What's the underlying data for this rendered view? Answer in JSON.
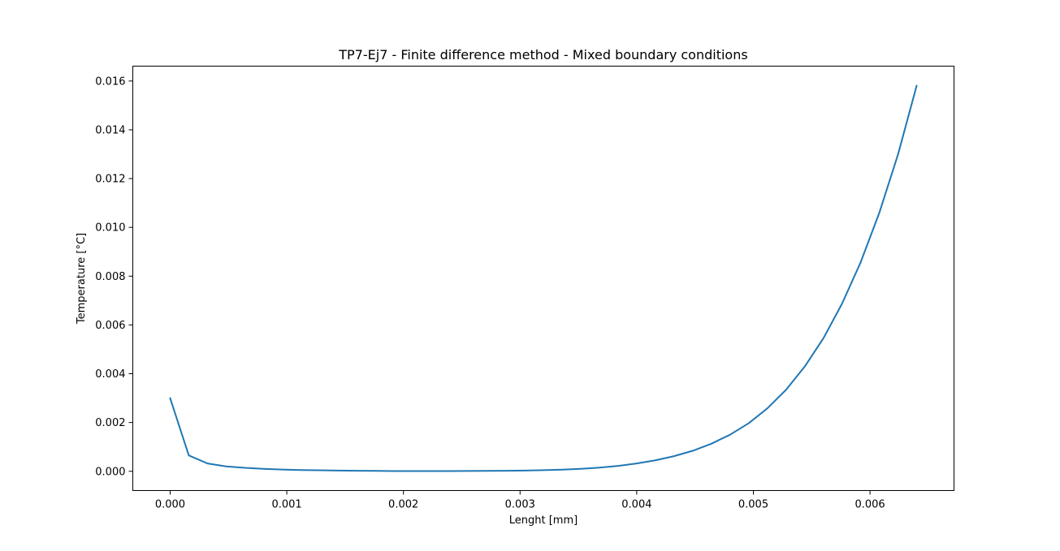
{
  "chart_data": {
    "type": "line",
    "title": "TP7-Ej7 - Finite difference method - Mixed boundary conditions",
    "xlabel": "Lenght [mm]",
    "ylabel": "Temperature [°C]",
    "xlim": [
      -0.00032,
      0.00672
    ],
    "ylim": [
      -0.00079,
      0.01661
    ],
    "xticks": [
      0.0,
      0.001,
      0.002,
      0.003,
      0.004,
      0.005,
      0.006
    ],
    "xtick_labels": [
      "0.000",
      "0.001",
      "0.002",
      "0.003",
      "0.004",
      "0.005",
      "0.006"
    ],
    "yticks": [
      0.0,
      0.002,
      0.004,
      0.006,
      0.008,
      0.01,
      0.012,
      0.014,
      0.016
    ],
    "ytick_labels": [
      "0.000",
      "0.002",
      "0.004",
      "0.006",
      "0.008",
      "0.010",
      "0.012",
      "0.014",
      "0.016"
    ],
    "grid": false,
    "series": [
      {
        "color": "#1f77b4",
        "x": [
          0.0,
          0.00016,
          0.00032,
          0.00048,
          0.00064,
          0.0008,
          0.00096,
          0.00112,
          0.00128,
          0.00144,
          0.0016,
          0.00176,
          0.00192,
          0.00208,
          0.00224,
          0.0024,
          0.00256,
          0.00272,
          0.00288,
          0.00304,
          0.0032,
          0.00336,
          0.00352,
          0.00368,
          0.00384,
          0.004,
          0.00416,
          0.00432,
          0.00448,
          0.00464,
          0.0048,
          0.00496,
          0.00512,
          0.00528,
          0.00544,
          0.0056,
          0.00576,
          0.00592,
          0.00608,
          0.00624,
          0.0064
        ],
        "y": [
          0.003,
          0.00065,
          0.00032,
          0.0002,
          0.00014,
          0.0001,
          7e-05,
          5e-05,
          4e-05,
          3e-05,
          2e-05,
          1.5e-05,
          1e-05,
          1e-05,
          1e-05,
          1e-05,
          1.2e-05,
          1.6e-05,
          2.2e-05,
          3e-05,
          4.5e-05,
          6.5e-05,
          0.0001,
          0.00015,
          0.00022,
          0.00032,
          0.00045,
          0.00062,
          0.00084,
          0.00113,
          0.0015,
          0.00197,
          0.00258,
          0.00334,
          0.00429,
          0.00545,
          0.00687,
          0.00857,
          0.0106,
          0.01299,
          0.01581
        ]
      }
    ]
  }
}
